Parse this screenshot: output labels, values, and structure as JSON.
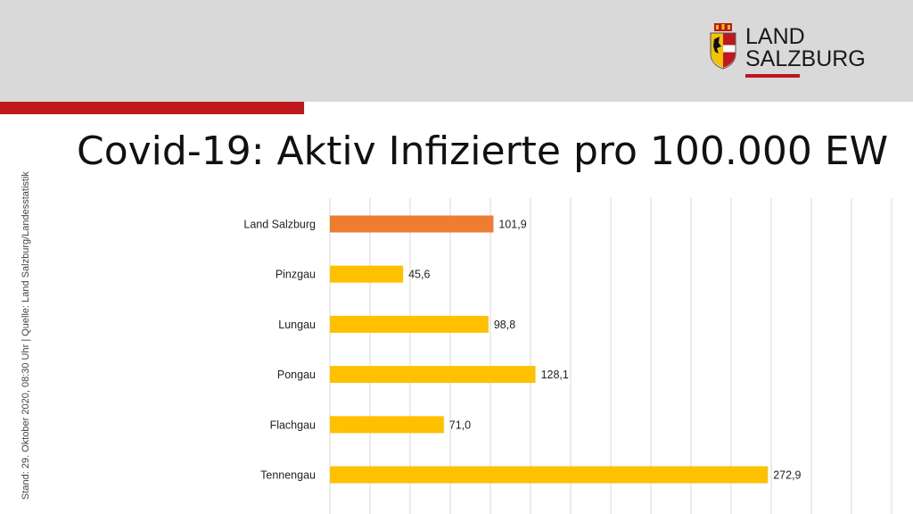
{
  "header": {
    "logo": {
      "line1": "LAND",
      "line2": "SALZBURG",
      "emblem": "salzburg-coat-of-arms-icon",
      "colors": {
        "red": "#c0171c",
        "gold": "#f2c300"
      }
    },
    "band_color": "#d9d9d9",
    "accent_color": "#c0171c"
  },
  "title": "Covid-19: Aktiv Infizierte pro 100.000 EW",
  "side_note": "Stand: 29. Oktober 2020, 08:30 Uhr | Quelle: Land Salzburg/Landesstatistik",
  "chart_data": {
    "type": "bar",
    "orientation": "horizontal",
    "categories": [
      "Land Salzburg",
      "Pinzgau",
      "Lungau",
      "Pongau",
      "Flachgau",
      "Tennengau"
    ],
    "values": [
      101.9,
      45.6,
      98.8,
      128.1,
      71.0,
      272.9
    ],
    "value_labels": [
      "101,9",
      "45,6",
      "98,8",
      "128,1",
      "71,0",
      "272,9"
    ],
    "bar_colors": [
      "#ed7d31",
      "#ffc000",
      "#ffc000",
      "#ffc000",
      "#ffc000",
      "#ffc000"
    ],
    "xlim": [
      0,
      360
    ],
    "grid": true,
    "xlabel": "",
    "ylabel": ""
  }
}
